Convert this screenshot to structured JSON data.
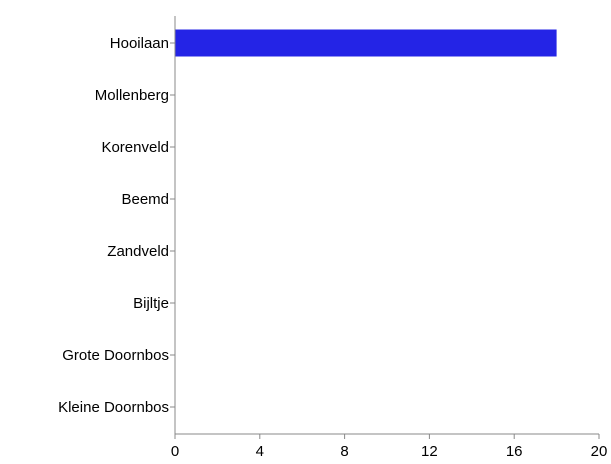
{
  "chart_data": {
    "type": "bar",
    "orientation": "horizontal",
    "categories": [
      "Hooilaan",
      "Mollenberg",
      "Korenveld",
      "Beemd",
      "Zandveld",
      "Bijltje",
      "Grote Doornbos",
      "Kleine Doornbos"
    ],
    "values": [
      18,
      0,
      0,
      0,
      0,
      0,
      0,
      0
    ],
    "xlim": [
      0,
      20
    ],
    "xticks": [
      0,
      4,
      8,
      12,
      16,
      20
    ],
    "title": "",
    "xlabel": "",
    "ylabel": "",
    "grid": false,
    "bar_color": "#2424e6",
    "axis_color": "#888888"
  }
}
